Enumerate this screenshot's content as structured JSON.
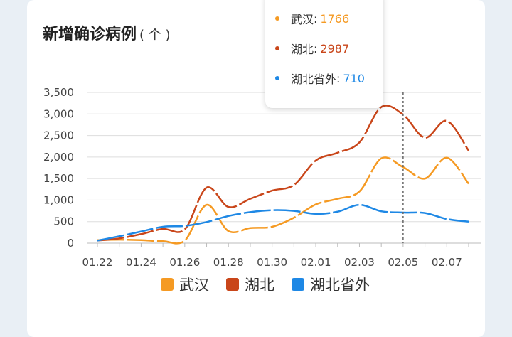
{
  "title": "新增确诊病例",
  "title_unit": "( 个 )",
  "chart_data": {
    "type": "line",
    "x": [
      "01.22",
      "01.23",
      "01.24",
      "01.25",
      "01.26",
      "01.27",
      "01.28",
      "01.29",
      "01.30",
      "01.31",
      "02.01",
      "02.02",
      "02.03",
      "02.04",
      "02.05",
      "02.06",
      "02.07",
      "02.08"
    ],
    "x_tick_labels": [
      "01.22",
      "01.24",
      "01.26",
      "01.28",
      "01.30",
      "02.01",
      "02.03",
      "02.05",
      "02.07"
    ],
    "ylim": [
      0,
      3500
    ],
    "y_ticks": [
      0,
      500,
      1000,
      1500,
      2000,
      2500,
      3000,
      3500
    ],
    "y_tick_labels": [
      "0",
      "500",
      "1,000",
      "1,500",
      "2,000",
      "2,500",
      "3,000",
      "3,500"
    ],
    "grid": true,
    "legend_position": "bottom",
    "series": [
      {
        "name": "武汉",
        "color": "#f59a23",
        "values": [
          70,
          80,
          70,
          45,
          60,
          890,
          280,
          350,
          380,
          590,
          900,
          1030,
          1200,
          1970,
          1766,
          1500,
          1985,
          1380
        ]
      },
      {
        "name": "湖北",
        "color": "#c9461a",
        "values": [
          60,
          110,
          210,
          330,
          320,
          1290,
          840,
          1030,
          1220,
          1350,
          1920,
          2100,
          2340,
          3160,
          2987,
          2450,
          2840,
          2150
        ]
      },
      {
        "name": "湖北省外",
        "color": "#1e88e5",
        "values": [
          60,
          160,
          270,
          380,
          400,
          490,
          630,
          720,
          765,
          750,
          680,
          730,
          890,
          740,
          710,
          700,
          560,
          500
        ]
      }
    ],
    "highlight_x": "02.05"
  },
  "tooltip": {
    "items": [
      {
        "name": "武汉",
        "value": "1766",
        "color": "#f59a23"
      },
      {
        "name": "湖北",
        "value": "2987",
        "color": "#c9461a"
      },
      {
        "name": "湖北省外",
        "value": "710",
        "color": "#1e88e5"
      }
    ]
  }
}
